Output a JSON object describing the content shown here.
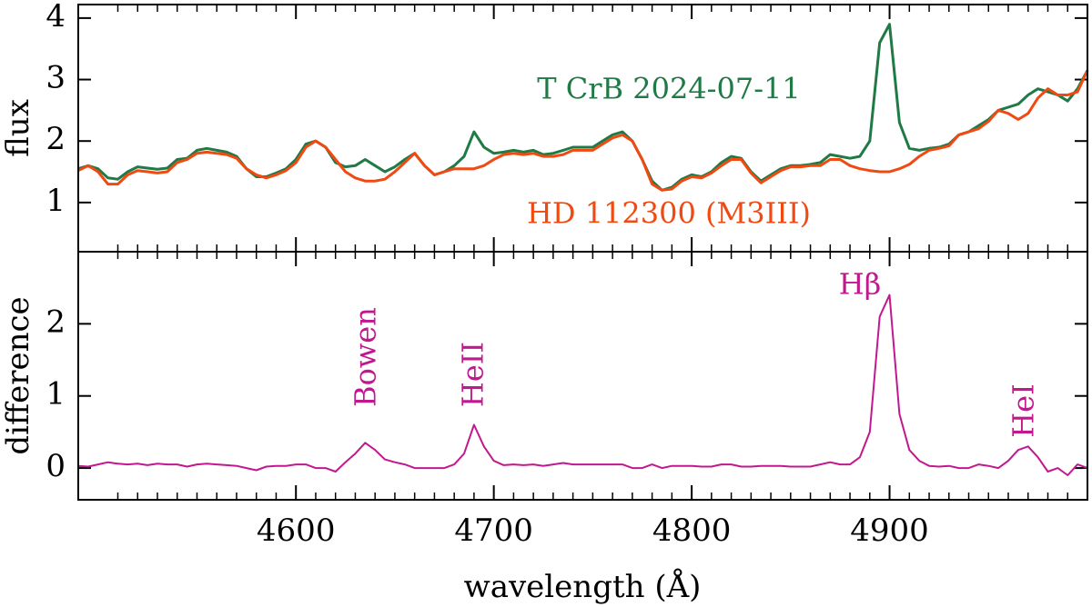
{
  "chart_data": [
    {
      "type": "line",
      "ylabel": "flux",
      "ylim": [
        0.2,
        4.22
      ],
      "yticks": [
        1,
        2,
        3,
        4
      ],
      "xlim": [
        4490,
        5000
      ],
      "x": [
        4490,
        4495,
        4500,
        4505,
        4510,
        4515,
        4520,
        4525,
        4530,
        4535,
        4540,
        4545,
        4550,
        4555,
        4560,
        4565,
        4570,
        4575,
        4580,
        4585,
        4590,
        4595,
        4600,
        4605,
        4610,
        4615,
        4620,
        4625,
        4630,
        4635,
        4640,
        4645,
        4650,
        4655,
        4660,
        4665,
        4670,
        4675,
        4680,
        4685,
        4690,
        4695,
        4700,
        4705,
        4710,
        4715,
        4720,
        4725,
        4730,
        4735,
        4740,
        4745,
        4750,
        4755,
        4760,
        4765,
        4770,
        4775,
        4780,
        4785,
        4790,
        4795,
        4800,
        4805,
        4810,
        4815,
        4820,
        4825,
        4830,
        4835,
        4840,
        4845,
        4850,
        4855,
        4860,
        4865,
        4870,
        4875,
        4880,
        4885,
        4890,
        4895,
        4900,
        4905,
        4910,
        4915,
        4920,
        4925,
        4930,
        4935,
        4940,
        4945,
        4950,
        4955,
        4960,
        4965,
        4970,
        4975,
        4980,
        4985,
        4990,
        4995,
        5000
      ],
      "series": [
        {
          "name": "T CrB 2024-07-11",
          "color": "#1f7a45",
          "values": [
            1.55,
            1.6,
            1.55,
            1.4,
            1.38,
            1.5,
            1.58,
            1.56,
            1.54,
            1.56,
            1.7,
            1.72,
            1.85,
            1.88,
            1.85,
            1.82,
            1.75,
            1.55,
            1.42,
            1.42,
            1.48,
            1.55,
            1.7,
            1.95,
            2.0,
            1.9,
            1.65,
            1.58,
            1.6,
            1.7,
            1.6,
            1.5,
            1.58,
            1.7,
            1.8,
            1.6,
            1.45,
            1.5,
            1.6,
            1.75,
            2.15,
            1.9,
            1.8,
            1.82,
            1.85,
            1.82,
            1.85,
            1.78,
            1.8,
            1.85,
            1.9,
            1.9,
            1.9,
            2.0,
            2.1,
            2.15,
            2.0,
            1.7,
            1.35,
            1.2,
            1.25,
            1.38,
            1.45,
            1.42,
            1.5,
            1.65,
            1.75,
            1.72,
            1.5,
            1.35,
            1.45,
            1.55,
            1.6,
            1.6,
            1.62,
            1.65,
            1.78,
            1.75,
            1.72,
            1.75,
            2.0,
            3.6,
            3.9,
            2.3,
            1.88,
            1.85,
            1.88,
            1.9,
            1.95,
            2.1,
            2.15,
            2.25,
            2.35,
            2.5,
            2.55,
            2.6,
            2.75,
            2.85,
            2.8,
            2.75,
            2.65,
            2.85,
            3.15
          ]
        },
        {
          "name": "HD 112300 (M3III)",
          "color": "#f04a12",
          "values": [
            1.52,
            1.6,
            1.5,
            1.3,
            1.3,
            1.45,
            1.52,
            1.5,
            1.48,
            1.5,
            1.65,
            1.7,
            1.8,
            1.82,
            1.8,
            1.78,
            1.72,
            1.55,
            1.45,
            1.4,
            1.45,
            1.52,
            1.65,
            1.9,
            2.0,
            1.9,
            1.7,
            1.5,
            1.4,
            1.35,
            1.35,
            1.38,
            1.5,
            1.65,
            1.8,
            1.6,
            1.45,
            1.5,
            1.55,
            1.55,
            1.55,
            1.6,
            1.7,
            1.78,
            1.8,
            1.78,
            1.8,
            1.75,
            1.75,
            1.78,
            1.85,
            1.85,
            1.85,
            1.95,
            2.05,
            2.1,
            2.0,
            1.7,
            1.3,
            1.2,
            1.22,
            1.35,
            1.42,
            1.4,
            1.48,
            1.6,
            1.7,
            1.7,
            1.48,
            1.32,
            1.42,
            1.52,
            1.58,
            1.58,
            1.6,
            1.6,
            1.7,
            1.7,
            1.6,
            1.55,
            1.52,
            1.5,
            1.5,
            1.55,
            1.62,
            1.75,
            1.85,
            1.88,
            1.92,
            2.1,
            2.15,
            2.2,
            2.32,
            2.5,
            2.45,
            2.35,
            2.45,
            2.7,
            2.85,
            2.75,
            2.75,
            2.8,
            3.15
          ]
        }
      ]
    },
    {
      "type": "line",
      "ylabel": "difference",
      "xlabel": "wavelength (Å)",
      "ylim": [
        -0.44,
        3.0
      ],
      "yticks": [
        0,
        1,
        2
      ],
      "xlim": [
        4490,
        5000
      ],
      "xticks": [
        4600,
        4700,
        4800,
        4900
      ],
      "xminorticks": [
        4490,
        4510,
        4520,
        4530,
        4540,
        4550,
        4560,
        4570,
        4580,
        4590,
        4610,
        4620,
        4630,
        4640,
        4650,
        4660,
        4670,
        4680,
        4690,
        4710,
        4720,
        4730,
        4740,
        4750,
        4760,
        4770,
        4780,
        4790,
        4810,
        4820,
        4830,
        4840,
        4850,
        4860,
        4870,
        4880,
        4890,
        4910,
        4920,
        4930,
        4940,
        4950,
        4960,
        4970,
        4980,
        4990
      ],
      "annotations": [
        "Bowen",
        "HeII",
        "Hβ",
        "HeI"
      ],
      "x": [
        4490,
        4495,
        4500,
        4505,
        4510,
        4515,
        4520,
        4525,
        4530,
        4535,
        4540,
        4545,
        4550,
        4555,
        4560,
        4565,
        4570,
        4575,
        4580,
        4585,
        4590,
        4595,
        4600,
        4605,
        4610,
        4615,
        4620,
        4625,
        4630,
        4635,
        4640,
        4645,
        4650,
        4655,
        4660,
        4665,
        4670,
        4675,
        4680,
        4685,
        4690,
        4695,
        4700,
        4705,
        4710,
        4715,
        4720,
        4725,
        4730,
        4735,
        4740,
        4745,
        4750,
        4755,
        4760,
        4765,
        4770,
        4775,
        4780,
        4785,
        4790,
        4795,
        4800,
        4805,
        4810,
        4815,
        4820,
        4825,
        4830,
        4835,
        4840,
        4845,
        4850,
        4855,
        4860,
        4865,
        4870,
        4875,
        4880,
        4885,
        4890,
        4895,
        4900,
        4905,
        4910,
        4915,
        4920,
        4925,
        4930,
        4935,
        4940,
        4945,
        4950,
        4955,
        4960,
        4965,
        4970,
        4975,
        4980,
        4985,
        4990,
        4995,
        5000
      ],
      "series": [
        {
          "name": "difference",
          "color": "#c2188f",
          "values": [
            0.03,
            0.02,
            0.05,
            0.08,
            0.06,
            0.05,
            0.06,
            0.04,
            0.06,
            0.05,
            0.05,
            0.02,
            0.05,
            0.06,
            0.05,
            0.04,
            0.03,
            0.0,
            -0.03,
            0.02,
            0.03,
            0.03,
            0.05,
            0.05,
            0.0,
            0.0,
            -0.05,
            0.08,
            0.2,
            0.35,
            0.25,
            0.12,
            0.08,
            0.05,
            0.0,
            0.0,
            0.0,
            0.0,
            0.05,
            0.2,
            0.6,
            0.3,
            0.1,
            0.04,
            0.05,
            0.04,
            0.05,
            0.03,
            0.05,
            0.07,
            0.05,
            0.05,
            0.05,
            0.05,
            0.05,
            0.05,
            0.0,
            0.0,
            0.05,
            0.0,
            0.03,
            0.03,
            0.03,
            0.02,
            0.02,
            0.05,
            0.05,
            0.02,
            0.02,
            0.03,
            0.03,
            0.03,
            0.02,
            0.02,
            0.02,
            0.05,
            0.08,
            0.05,
            0.05,
            0.15,
            0.5,
            2.1,
            2.4,
            0.75,
            0.25,
            0.1,
            0.03,
            0.02,
            0.03,
            0.0,
            0.0,
            0.05,
            0.03,
            0.0,
            0.1,
            0.25,
            0.3,
            0.15,
            -0.05,
            0.0,
            -0.1,
            0.05,
            0.0
          ]
        }
      ]
    }
  ]
}
